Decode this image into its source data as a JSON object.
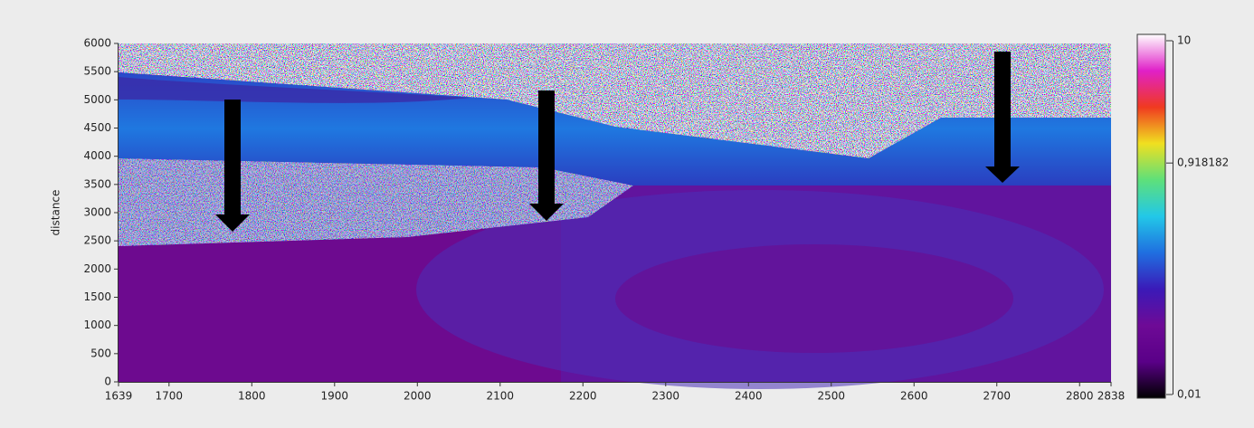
{
  "chart_data": {
    "type": "heatmap",
    "y_label": "distance",
    "xlim": [
      1639,
      2838
    ],
    "xticks": [
      1639,
      1700,
      1800,
      1900,
      2000,
      2100,
      2200,
      2300,
      2400,
      2500,
      2600,
      2700,
      2800,
      2838
    ],
    "ylim": [
      0,
      6000
    ],
    "yticks": [
      0,
      500,
      1000,
      1500,
      2000,
      2500,
      3000,
      3500,
      4000,
      4500,
      5000,
      5500,
      6000
    ],
    "colorbar": {
      "scale": "log",
      "clim": [
        0.01,
        10
      ],
      "colormap": [
        "#000000",
        "#5a0088",
        "#6e0a96",
        "#3a1ab8",
        "#1f6fe0",
        "#22c8e8",
        "#5ee07a",
        "#f0e020",
        "#f03a20",
        "#e020c8",
        "#ffffff"
      ],
      "ticks": [
        10,
        {
          "value": 0.918182,
          "label": "0,918182"
        },
        {
          "value": 0.01,
          "label": "0,01"
        }
      ]
    }
  }
}
